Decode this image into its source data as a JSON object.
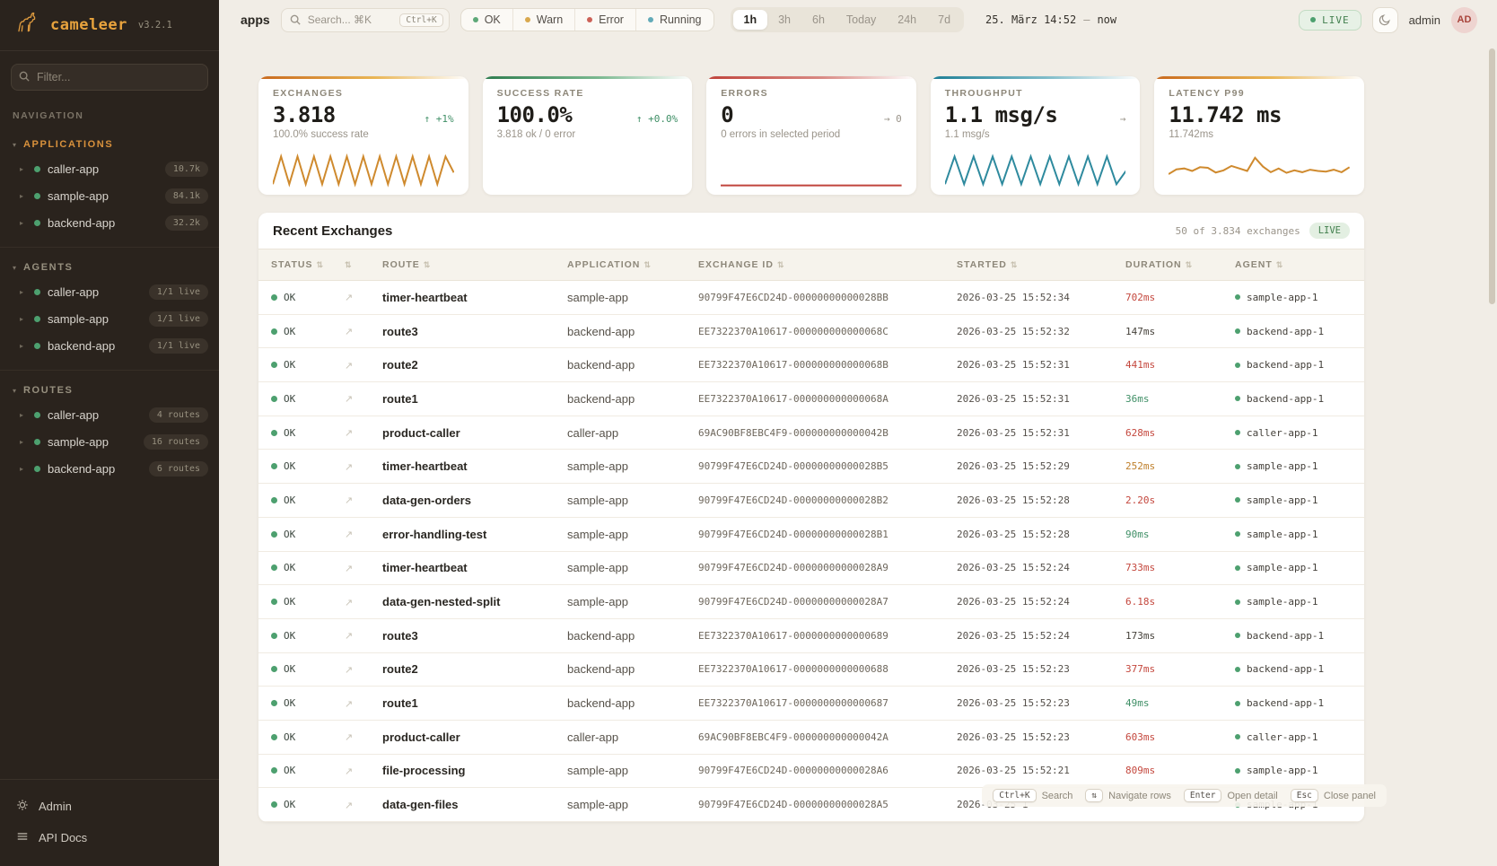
{
  "app": {
    "name": "cameleer",
    "version": "v3.2.1"
  },
  "sidebar": {
    "filter_placeholder": "Filter...",
    "nav_label": "NAVIGATION",
    "sections": [
      {
        "title": "APPLICATIONS",
        "accent": true,
        "items": [
          {
            "label": "caller-app",
            "badge": "10.7k"
          },
          {
            "label": "sample-app",
            "badge": "84.1k"
          },
          {
            "label": "backend-app",
            "badge": "32.2k"
          }
        ]
      },
      {
        "title": "AGENTS",
        "accent": false,
        "items": [
          {
            "label": "caller-app",
            "badge": "1/1 live"
          },
          {
            "label": "sample-app",
            "badge": "1/1 live"
          },
          {
            "label": "backend-app",
            "badge": "1/1 live"
          }
        ]
      },
      {
        "title": "ROUTES",
        "accent": false,
        "items": [
          {
            "label": "caller-app",
            "badge": "4 routes"
          },
          {
            "label": "sample-app",
            "badge": "16 routes"
          },
          {
            "label": "backend-app",
            "badge": "6 routes"
          }
        ]
      }
    ],
    "footer": [
      {
        "label": "Admin"
      },
      {
        "label": "API Docs"
      }
    ]
  },
  "topbar": {
    "context": "apps",
    "search": {
      "placeholder": "Search... ⌘K",
      "kbd": "Ctrl+K"
    },
    "status_filters": [
      {
        "label": "OK",
        "color": "#5da878"
      },
      {
        "label": "Warn",
        "color": "#d9a84e"
      },
      {
        "label": "Error",
        "color": "#cc6157"
      },
      {
        "label": "Running",
        "color": "#62aab8"
      }
    ],
    "time_ranges": [
      "1h",
      "3h",
      "6h",
      "Today",
      "24h",
      "7d"
    ],
    "active_range": "1h",
    "date_range": {
      "from": "25. März 14:52",
      "sep": "—",
      "to": "now"
    },
    "live_label": "LIVE",
    "user": "admin",
    "avatar": "AD"
  },
  "cards": [
    {
      "label": "EXCHANGES",
      "value": "3.818",
      "trend": "↑ +1%",
      "trend_color": "green",
      "subtitle": "100.0% success rate",
      "strip": "linear-gradient(90deg,#c96a1e,#e9b554 55%,rgba(255,255,255,0))",
      "spark": {
        "color": "#cf8a2e",
        "values": [
          8,
          96,
          8,
          96,
          8,
          96,
          8,
          96,
          8,
          96,
          8,
          96,
          8,
          96,
          8,
          96,
          8,
          96,
          8,
          96,
          8,
          96,
          45
        ]
      }
    },
    {
      "label": "SUCCESS RATE",
      "value": "100.0%",
      "trend": "↑ +0.0%",
      "trend_color": "green",
      "subtitle": "3.818 ok / 0 error",
      "strip": "linear-gradient(90deg,#2f7d4f,#7ab88f 55%,rgba(255,255,255,0))",
      "spark": null
    },
    {
      "label": "ERRORS",
      "value": "0",
      "trend": "→ 0",
      "trend_color": "gray",
      "subtitle": "0 errors in selected period",
      "strip": "linear-gradient(90deg,#c0443c,#d98a84 55%,rgba(255,255,255,0))",
      "spark": {
        "color": "#c0443c",
        "values": [
          4,
          4
        ]
      }
    },
    {
      "label": "THROUGHPUT",
      "value": "1.1 msg/s",
      "trend": "→",
      "trend_color": "gray",
      "subtitle": "1.1 msg/s",
      "strip": "linear-gradient(90deg,#1f7f96,#7fbcc9 55%,rgba(255,255,255,0))",
      "spark": {
        "color": "#2e8a9e",
        "values": [
          8,
          96,
          8,
          96,
          8,
          96,
          8,
          96,
          8,
          96,
          8,
          96,
          8,
          96,
          8,
          96,
          8,
          96,
          8,
          50
        ]
      }
    },
    {
      "label": "LATENCY P99",
      "value": "11.742 ms",
      "trend": "",
      "trend_color": "gray",
      "subtitle": "11.742ms",
      "strip": "linear-gradient(90deg,#c96a1e,#e9b554 55%,rgba(255,255,255,0))",
      "spark": {
        "color": "#cf8a2e",
        "values": [
          40,
          55,
          58,
          50,
          62,
          60,
          45,
          52,
          66,
          58,
          50,
          92,
          64,
          46,
          58,
          44,
          52,
          46,
          54,
          50,
          48,
          54,
          46,
          62
        ]
      }
    }
  ],
  "table": {
    "title": "Recent Exchanges",
    "summary": "50 of 3.834 exchanges",
    "live_label": "LIVE",
    "columns": [
      "STATUS",
      "",
      "ROUTE",
      "APPLICATION",
      "EXCHANGE ID",
      "STARTED",
      "DURATION",
      "AGENT"
    ],
    "rows": [
      {
        "status": "OK",
        "route": "timer-heartbeat",
        "app": "sample-app",
        "id": "90799F47E6CD24D-00000000000028BB",
        "started": "2026-03-25 15:52:34",
        "duration": "702ms",
        "dur_color": "red",
        "agent": "sample-app-1"
      },
      {
        "status": "OK",
        "route": "route3",
        "app": "backend-app",
        "id": "EE7322370A10617-000000000000068C",
        "started": "2026-03-25 15:52:32",
        "duration": "147ms",
        "dur_color": "default",
        "agent": "backend-app-1"
      },
      {
        "status": "OK",
        "route": "route2",
        "app": "backend-app",
        "id": "EE7322370A10617-000000000000068B",
        "started": "2026-03-25 15:52:31",
        "duration": "441ms",
        "dur_color": "red",
        "agent": "backend-app-1"
      },
      {
        "status": "OK",
        "route": "route1",
        "app": "backend-app",
        "id": "EE7322370A10617-000000000000068A",
        "started": "2026-03-25 15:52:31",
        "duration": "36ms",
        "dur_color": "green",
        "agent": "backend-app-1"
      },
      {
        "status": "OK",
        "route": "product-caller",
        "app": "caller-app",
        "id": "69AC90BF8EBC4F9-000000000000042B",
        "started": "2026-03-25 15:52:31",
        "duration": "628ms",
        "dur_color": "red",
        "agent": "caller-app-1"
      },
      {
        "status": "OK",
        "route": "timer-heartbeat",
        "app": "sample-app",
        "id": "90799F47E6CD24D-00000000000028B5",
        "started": "2026-03-25 15:52:29",
        "duration": "252ms",
        "dur_color": "amber",
        "agent": "sample-app-1"
      },
      {
        "status": "OK",
        "route": "data-gen-orders",
        "app": "sample-app",
        "id": "90799F47E6CD24D-00000000000028B2",
        "started": "2026-03-25 15:52:28",
        "duration": "2.20s",
        "dur_color": "red",
        "agent": "sample-app-1"
      },
      {
        "status": "OK",
        "route": "error-handling-test",
        "app": "sample-app",
        "id": "90799F47E6CD24D-00000000000028B1",
        "started": "2026-03-25 15:52:28",
        "duration": "90ms",
        "dur_color": "green",
        "agent": "sample-app-1"
      },
      {
        "status": "OK",
        "route": "timer-heartbeat",
        "app": "sample-app",
        "id": "90799F47E6CD24D-00000000000028A9",
        "started": "2026-03-25 15:52:24",
        "duration": "733ms",
        "dur_color": "red",
        "agent": "sample-app-1"
      },
      {
        "status": "OK",
        "route": "data-gen-nested-split",
        "app": "sample-app",
        "id": "90799F47E6CD24D-00000000000028A7",
        "started": "2026-03-25 15:52:24",
        "duration": "6.18s",
        "dur_color": "red",
        "agent": "sample-app-1"
      },
      {
        "status": "OK",
        "route": "route3",
        "app": "backend-app",
        "id": "EE7322370A10617-0000000000000689",
        "started": "2026-03-25 15:52:24",
        "duration": "173ms",
        "dur_color": "default",
        "agent": "backend-app-1"
      },
      {
        "status": "OK",
        "route": "route2",
        "app": "backend-app",
        "id": "EE7322370A10617-0000000000000688",
        "started": "2026-03-25 15:52:23",
        "duration": "377ms",
        "dur_color": "red",
        "agent": "backend-app-1"
      },
      {
        "status": "OK",
        "route": "route1",
        "app": "backend-app",
        "id": "EE7322370A10617-0000000000000687",
        "started": "2026-03-25 15:52:23",
        "duration": "49ms",
        "dur_color": "green",
        "agent": "backend-app-1"
      },
      {
        "status": "OK",
        "route": "product-caller",
        "app": "caller-app",
        "id": "69AC90BF8EBC4F9-000000000000042A",
        "started": "2026-03-25 15:52:23",
        "duration": "603ms",
        "dur_color": "red",
        "agent": "caller-app-1"
      },
      {
        "status": "OK",
        "route": "file-processing",
        "app": "sample-app",
        "id": "90799F47E6CD24D-00000000000028A6",
        "started": "2026-03-25 15:52:21",
        "duration": "809ms",
        "dur_color": "red",
        "agent": "sample-app-1"
      },
      {
        "status": "OK",
        "route": "data-gen-files",
        "app": "sample-app",
        "id": "90799F47E6CD24D-00000000000028A5",
        "started": "2026-03-25 1",
        "duration": "",
        "dur_color": "default",
        "agent": "sample-app-1"
      }
    ]
  },
  "hints": [
    {
      "kbd": "Ctrl+K",
      "label": "Search"
    },
    {
      "kbd": "⇅",
      "label": "Navigate rows"
    },
    {
      "kbd": "Enter",
      "label": "Open detail"
    },
    {
      "kbd": "Esc",
      "label": "Close panel"
    }
  ]
}
